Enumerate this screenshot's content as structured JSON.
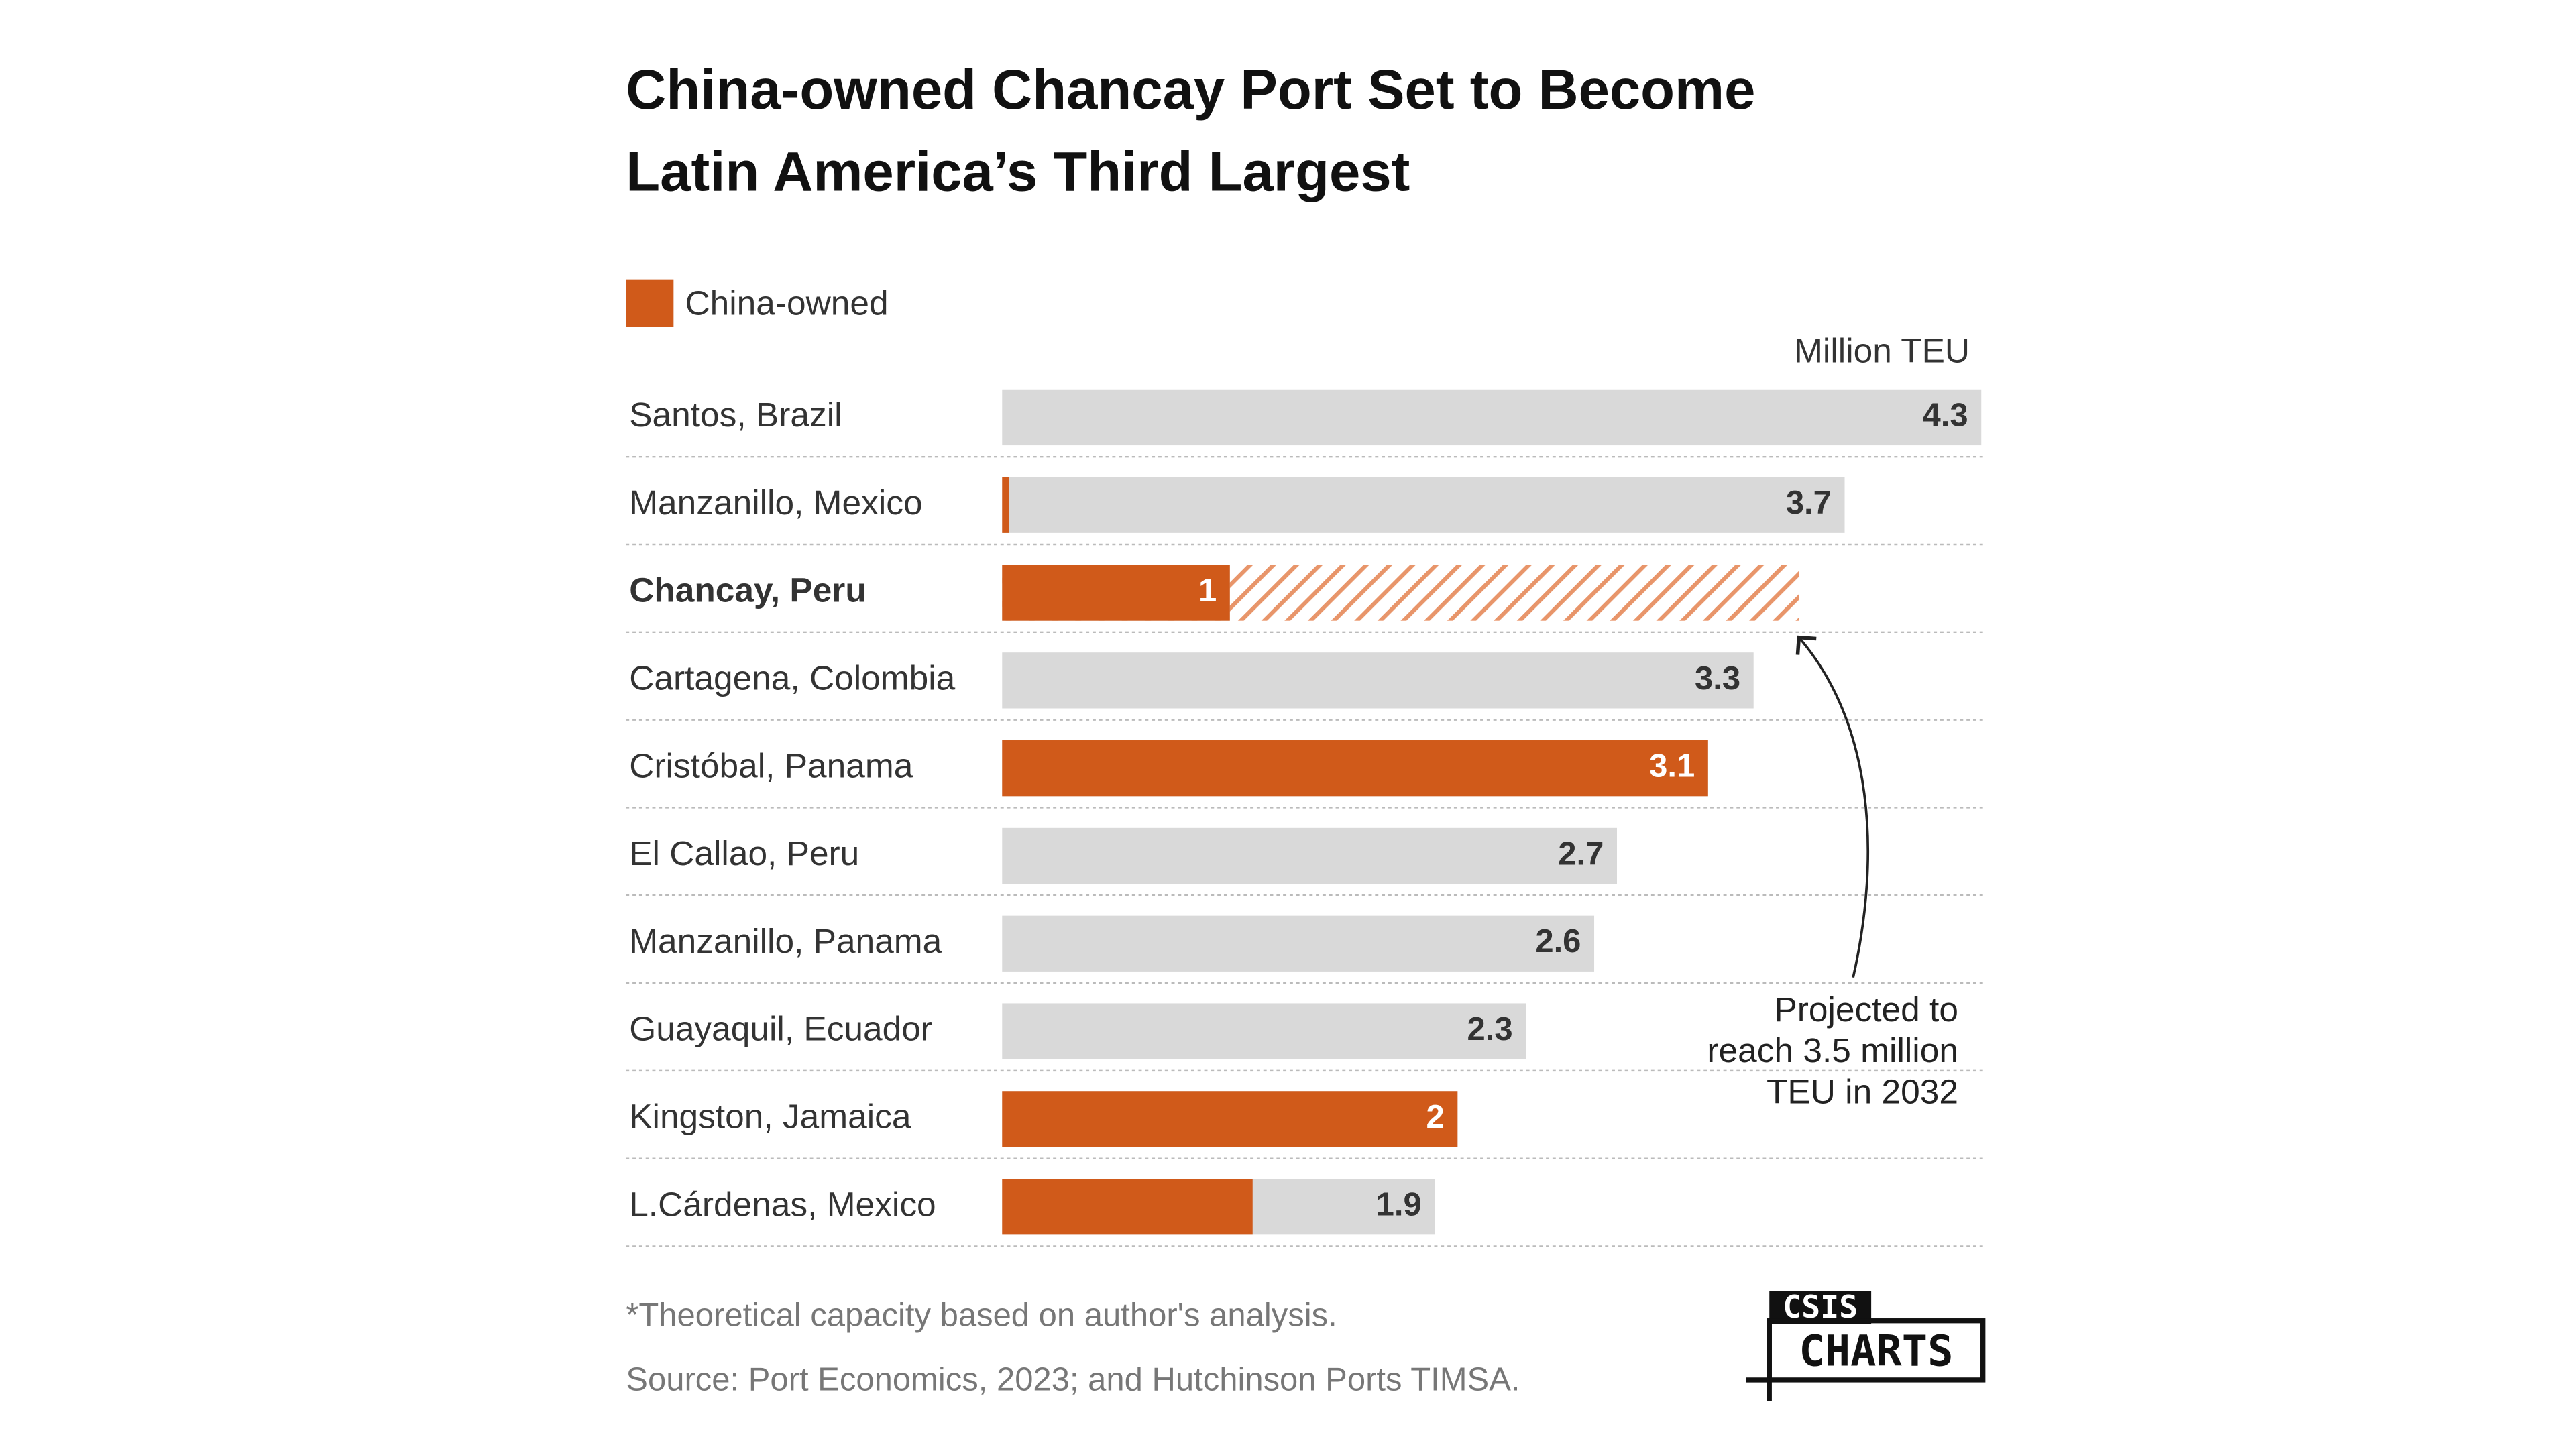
{
  "chart_data": {
    "type": "bar",
    "title": [
      "China-owned Chancay Port Set to Become",
      "Latin America’s Third Largest"
    ],
    "unit_label": "Million TEU",
    "categories": [
      "Santos, Brazil",
      "Manzanillo, Mexico",
      "Chancay, Peru",
      "Cartagena, Colombia",
      "Cristóbal, Panama",
      "El Callao, Peru",
      "Manzanillo, Panama",
      "Guayaquil, Ecuador",
      "Kingston, Jamaica",
      "L.Cárdenas, Mexico"
    ],
    "series": [
      {
        "color": "#d9d9d9",
        "values": [
          4.3,
          3.7,
          1,
          3.3,
          3.1,
          2.7,
          2.6,
          2.3,
          2,
          1.9
        ]
      },
      {
        "name": "China-owned",
        "color": "#d05a1a",
        "values": [
          0,
          0.03,
          1,
          0,
          3.1,
          0,
          0,
          0,
          2,
          1.1
        ]
      }
    ],
    "projected": {
      "color": "#e8956a",
      "values": [
        null,
        null,
        3.5,
        null,
        null,
        null,
        null,
        null,
        null,
        null
      ]
    },
    "annotation": [
      "Projected to",
      "reach 3.5 million",
      "TEU in 2032"
    ],
    "xlim": [
      0,
      4.3
    ],
    "footnote": "*Theoretical capacity based on author's analysis.",
    "source": "Source: Port Economics, 2023; and Hutchinson Ports TIMSA.",
    "logo": [
      "CSIS",
      "CHARTS"
    ]
  }
}
